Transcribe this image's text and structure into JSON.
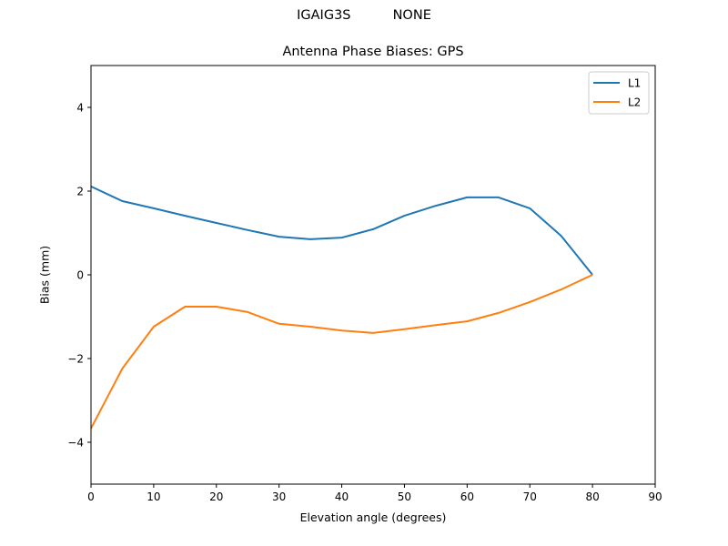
{
  "figure": {
    "suptitle_left": "IGAIG3S",
    "suptitle_right": "NONE",
    "suptitle": "IGAIG3S          NONE"
  },
  "chart_data": {
    "type": "line",
    "title": "Antenna Phase Biases: GPS",
    "xlabel": "Elevation angle (degrees)",
    "ylabel": "Bias (mm)",
    "xlim": [
      0,
      90
    ],
    "ylim": [
      -5,
      5
    ],
    "xticks": [
      0,
      10,
      20,
      30,
      40,
      50,
      60,
      70,
      80,
      90
    ],
    "yticks": [
      -4,
      -2,
      0,
      2,
      4
    ],
    "ytick_labels": [
      "−4",
      "−2",
      "0",
      "2",
      "4"
    ],
    "grid": false,
    "legend_position": "upper right",
    "x": [
      0,
      5,
      10,
      15,
      20,
      25,
      30,
      35,
      40,
      45,
      50,
      55,
      60,
      65,
      70,
      75,
      80
    ],
    "series": [
      {
        "name": "L1",
        "color": "#1f77b4",
        "values": [
          2.11,
          1.76,
          1.59,
          1.41,
          1.24,
          1.07,
          0.91,
          0.85,
          0.89,
          1.09,
          1.41,
          1.65,
          1.85,
          1.85,
          1.59,
          0.93,
          0.0
        ]
      },
      {
        "name": "L2",
        "color": "#ff7f0e",
        "values": [
          -3.67,
          -2.24,
          -1.24,
          -0.76,
          -0.76,
          -0.89,
          -1.17,
          -1.24,
          -1.33,
          -1.39,
          -1.3,
          -1.2,
          -1.11,
          -0.91,
          -0.65,
          -0.35,
          0.0
        ]
      }
    ]
  }
}
